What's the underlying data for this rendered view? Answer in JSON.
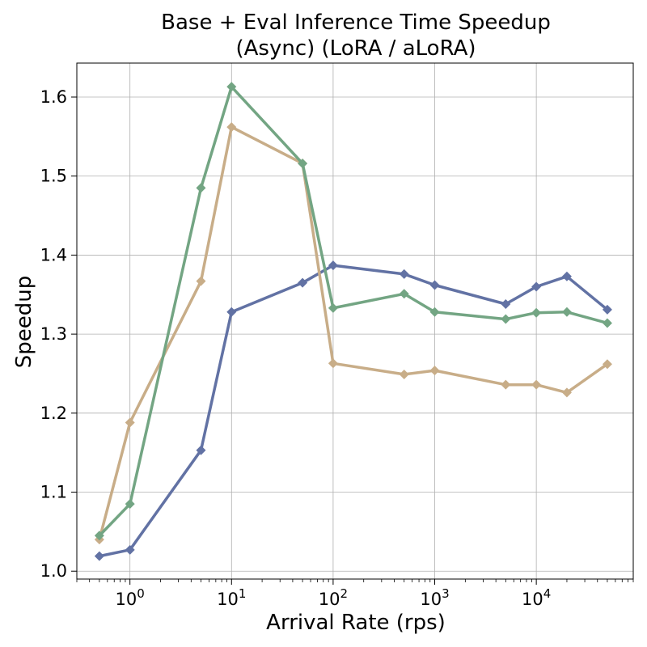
{
  "chart_data": {
    "type": "line",
    "title": [
      "Base + Eval Inference Time Speedup",
      "(Async) (LoRA / aLoRA)"
    ],
    "xlabel": "Arrival Rate (rps)",
    "ylabel": "Speedup",
    "xscale": "log",
    "xlim": [
      0.3,
      90000
    ],
    "ylim": [
      0.99,
      1.643
    ],
    "x_ticks": [
      1,
      10,
      100,
      1000,
      10000
    ],
    "x_tick_labels": [
      {
        "base": "10",
        "exp": "0"
      },
      {
        "base": "10",
        "exp": "1"
      },
      {
        "base": "10",
        "exp": "2"
      },
      {
        "base": "10",
        "exp": "3"
      },
      {
        "base": "10",
        "exp": "4"
      }
    ],
    "y_ticks": [
      1.0,
      1.1,
      1.2,
      1.3,
      1.4,
      1.5,
      1.6
    ],
    "y_tick_labels": [
      "1.0",
      "1.1",
      "1.2",
      "1.3",
      "1.4",
      "1.5",
      "1.6"
    ],
    "grid": true,
    "marker": "diamond",
    "x": [
      0.5,
      1,
      5,
      10,
      50,
      100,
      500,
      1000,
      5000,
      10000,
      20000,
      50000
    ],
    "series": [
      {
        "color": "#6272a4",
        "values": [
          1.019,
          1.027,
          1.153,
          1.328,
          1.365,
          1.387,
          1.376,
          1.362,
          1.338,
          1.36,
          1.373,
          1.331
        ]
      },
      {
        "color": "#c8ad88",
        "values": [
          1.04,
          1.188,
          1.367,
          1.562,
          1.516,
          1.263,
          1.249,
          1.254,
          1.236,
          1.236,
          1.226,
          1.262
        ]
      },
      {
        "color": "#73a583",
        "values": [
          1.045,
          1.085,
          1.485,
          1.613,
          1.516,
          1.333,
          1.351,
          1.328,
          1.319,
          1.327,
          1.328,
          1.314
        ]
      }
    ]
  }
}
